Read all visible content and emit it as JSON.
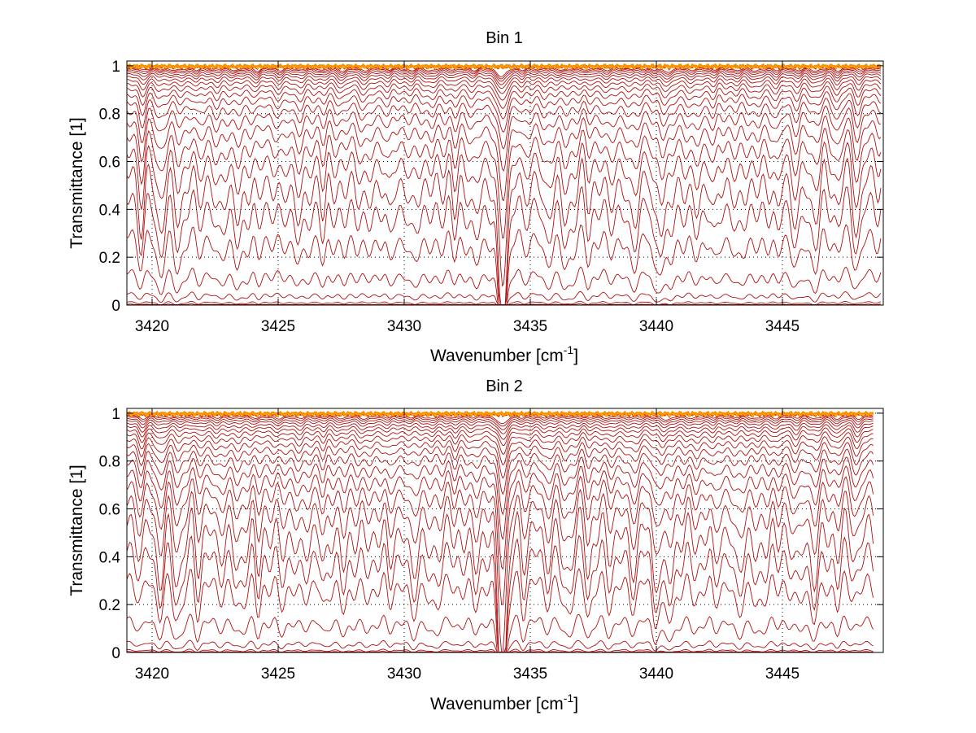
{
  "chart_data": [
    {
      "type": "line",
      "title": "Bin 1",
      "xlabel": "Wavenumber [cm",
      "xlabel_sup": "-1",
      "xlabel_suffix": "]",
      "ylabel": "Transmittance [1]",
      "xlim": [
        3419,
        3449
      ],
      "ylim": [
        0,
        1.02
      ],
      "xticks": [
        3420,
        3425,
        3430,
        3435,
        3440,
        3445
      ],
      "yticks": [
        0,
        0.2,
        0.4,
        0.6,
        0.8,
        1
      ],
      "xtick_labels": [
        "3420",
        "3425",
        "3430",
        "3435",
        "3440",
        "3445"
      ],
      "ytick_labels": [
        "0",
        "0.2",
        "0.4",
        "0.6",
        "0.8",
        "1"
      ],
      "grid": true,
      "x_start": 3419.0,
      "x_end": 3448.9,
      "series_baselines": [
        1.0,
        0.997,
        0.994,
        0.99,
        0.985,
        0.979,
        0.971,
        0.962,
        0.95,
        0.935,
        0.917,
        0.895,
        0.868,
        0.835,
        0.795,
        0.745,
        0.685,
        0.615,
        0.53,
        0.42,
        0.28,
        0.13,
        0.045,
        0.012,
        0.003
      ],
      "absorption_lines": [
        3419.6,
        3420.3,
        3421.0,
        3421.8,
        3422.6,
        3423.4,
        3424.2,
        3425.1,
        3425.9,
        3426.8,
        3427.6,
        3428.5,
        3429.4,
        3430.3,
        3431.1,
        3432.0,
        3432.8,
        3433.8,
        3434.7,
        3435.6,
        3436.4,
        3437.3,
        3438.1,
        3439.0,
        3439.9,
        3440.6,
        3441.5,
        3442.3,
        3443.2,
        3444.0,
        3444.8,
        3445.6,
        3446.3,
        3447.2,
        3448.0
      ]
    },
    {
      "type": "line",
      "title": "Bin 2",
      "xlabel": "Wavenumber [cm",
      "xlabel_sup": "-1",
      "xlabel_suffix": "]",
      "ylabel": "Transmittance [1]",
      "xlim": [
        3419,
        3449
      ],
      "ylim": [
        0,
        1.02
      ],
      "xticks": [
        3420,
        3425,
        3430,
        3435,
        3440,
        3445
      ],
      "yticks": [
        0,
        0.2,
        0.4,
        0.6,
        0.8,
        1
      ],
      "xtick_labels": [
        "3420",
        "3425",
        "3430",
        "3435",
        "3440",
        "3445"
      ],
      "ytick_labels": [
        "0",
        "0.2",
        "0.4",
        "0.6",
        "0.8",
        "1"
      ],
      "grid": true,
      "x_start": 3419.0,
      "x_end": 3448.6,
      "series_baselines": [
        1.0,
        0.997,
        0.993,
        0.988,
        0.982,
        0.974,
        0.965,
        0.953,
        0.94,
        0.924,
        0.905,
        0.882,
        0.855,
        0.822,
        0.782,
        0.735,
        0.68,
        0.61,
        0.52,
        0.41,
        0.29,
        0.13,
        0.04,
        0.01,
        0.003
      ],
      "absorption_lines": [
        3419.6,
        3420.3,
        3421.0,
        3421.8,
        3422.6,
        3423.4,
        3424.2,
        3425.1,
        3425.9,
        3426.8,
        3427.6,
        3428.5,
        3429.4,
        3430.3,
        3431.1,
        3432.0,
        3432.8,
        3433.8,
        3434.7,
        3435.6,
        3436.4,
        3437.3,
        3438.1,
        3439.0,
        3439.9,
        3440.6,
        3441.5,
        3442.3,
        3443.2,
        3444.0,
        3444.8,
        3445.6,
        3446.3,
        3447.2,
        3448.0
      ]
    }
  ],
  "colors": {
    "line": "#b01010",
    "top_line_a": "#ff8c00",
    "top_line_b": "#ffcc00",
    "top_line_c": "#e03a00",
    "grid": "#000000",
    "axis": "#000000"
  }
}
